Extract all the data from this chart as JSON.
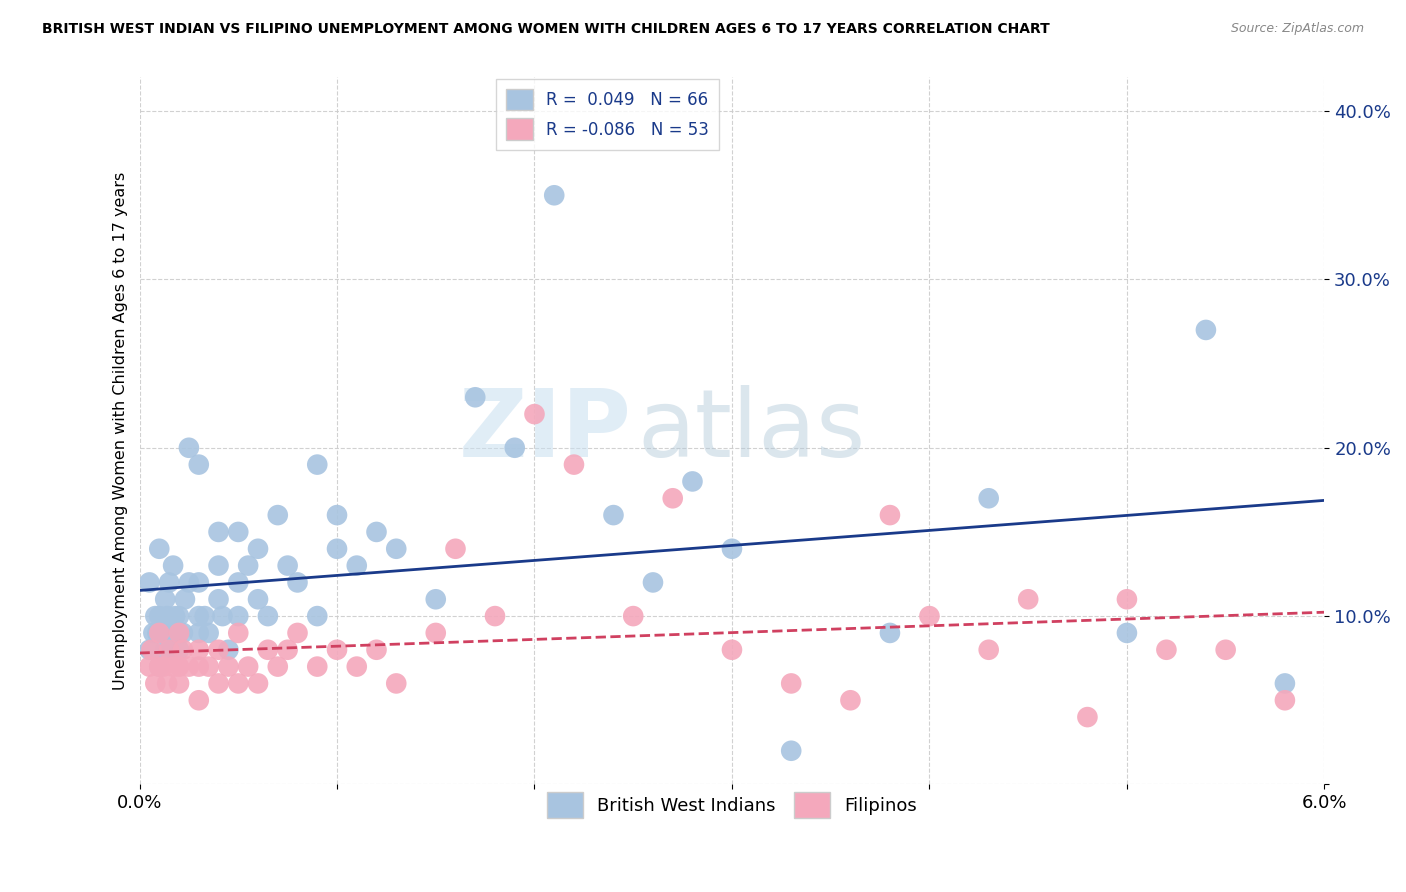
{
  "title": "BRITISH WEST INDIAN VS FILIPINO UNEMPLOYMENT AMONG WOMEN WITH CHILDREN AGES 6 TO 17 YEARS CORRELATION CHART",
  "source": "Source: ZipAtlas.com",
  "ylabel": "Unemployment Among Women with Children Ages 6 to 17 years",
  "xlim": [
    0.0,
    0.06
  ],
  "ylim": [
    0.0,
    0.42
  ],
  "yticks": [
    0.0,
    0.1,
    0.2,
    0.3,
    0.4
  ],
  "xticks": [
    0.0,
    0.01,
    0.02,
    0.03,
    0.04,
    0.05,
    0.06
  ],
  "xtick_labels": [
    "0.0%",
    "",
    "",
    "",
    "",
    "",
    "6.0%"
  ],
  "blue_R": 0.049,
  "blue_N": 66,
  "pink_R": -0.086,
  "pink_N": 53,
  "blue_color": "#a8c4e0",
  "pink_color": "#f4a8bc",
  "blue_line_color": "#1a3a8a",
  "pink_line_color": "#d04060",
  "watermark_zip": "ZIP",
  "watermark_atlas": "atlas",
  "legend_blue_label": "British West Indians",
  "legend_pink_label": "Filipinos",
  "blue_x": [
    0.0005,
    0.0005,
    0.0007,
    0.0008,
    0.0009,
    0.001,
    0.001,
    0.001,
    0.0012,
    0.0013,
    0.0013,
    0.0014,
    0.0015,
    0.0015,
    0.0016,
    0.0017,
    0.0018,
    0.002,
    0.002,
    0.002,
    0.0022,
    0.0023,
    0.0025,
    0.0025,
    0.003,
    0.003,
    0.003,
    0.003,
    0.0033,
    0.0035,
    0.004,
    0.004,
    0.004,
    0.0042,
    0.0045,
    0.005,
    0.005,
    0.005,
    0.0055,
    0.006,
    0.006,
    0.0065,
    0.007,
    0.0075,
    0.008,
    0.009,
    0.009,
    0.01,
    0.01,
    0.011,
    0.012,
    0.013,
    0.015,
    0.017,
    0.019,
    0.021,
    0.024,
    0.026,
    0.028,
    0.03,
    0.033,
    0.038,
    0.043,
    0.05,
    0.054,
    0.058
  ],
  "blue_y": [
    0.08,
    0.12,
    0.09,
    0.1,
    0.09,
    0.07,
    0.1,
    0.14,
    0.09,
    0.08,
    0.11,
    0.1,
    0.08,
    0.12,
    0.09,
    0.13,
    0.1,
    0.08,
    0.09,
    0.1,
    0.09,
    0.11,
    0.12,
    0.2,
    0.09,
    0.1,
    0.12,
    0.19,
    0.1,
    0.09,
    0.11,
    0.13,
    0.15,
    0.1,
    0.08,
    0.1,
    0.12,
    0.15,
    0.13,
    0.11,
    0.14,
    0.1,
    0.16,
    0.13,
    0.12,
    0.1,
    0.19,
    0.14,
    0.16,
    0.13,
    0.15,
    0.14,
    0.11,
    0.23,
    0.2,
    0.35,
    0.16,
    0.12,
    0.18,
    0.14,
    0.02,
    0.09,
    0.17,
    0.09,
    0.27,
    0.06
  ],
  "pink_x": [
    0.0005,
    0.0006,
    0.0008,
    0.001,
    0.001,
    0.0012,
    0.0014,
    0.0015,
    0.0017,
    0.002,
    0.002,
    0.002,
    0.0022,
    0.0025,
    0.003,
    0.003,
    0.003,
    0.0035,
    0.004,
    0.004,
    0.0045,
    0.005,
    0.005,
    0.0055,
    0.006,
    0.0065,
    0.007,
    0.0075,
    0.008,
    0.009,
    0.01,
    0.011,
    0.012,
    0.013,
    0.015,
    0.016,
    0.018,
    0.02,
    0.022,
    0.025,
    0.027,
    0.03,
    0.033,
    0.036,
    0.038,
    0.04,
    0.043,
    0.045,
    0.048,
    0.05,
    0.052,
    0.055,
    0.058
  ],
  "pink_y": [
    0.07,
    0.08,
    0.06,
    0.07,
    0.09,
    0.07,
    0.06,
    0.08,
    0.07,
    0.06,
    0.07,
    0.09,
    0.08,
    0.07,
    0.05,
    0.07,
    0.08,
    0.07,
    0.06,
    0.08,
    0.07,
    0.06,
    0.09,
    0.07,
    0.06,
    0.08,
    0.07,
    0.08,
    0.09,
    0.07,
    0.08,
    0.07,
    0.08,
    0.06,
    0.09,
    0.14,
    0.1,
    0.22,
    0.19,
    0.1,
    0.17,
    0.08,
    0.06,
    0.05,
    0.16,
    0.1,
    0.08,
    0.11,
    0.04,
    0.11,
    0.08,
    0.08,
    0.05
  ]
}
